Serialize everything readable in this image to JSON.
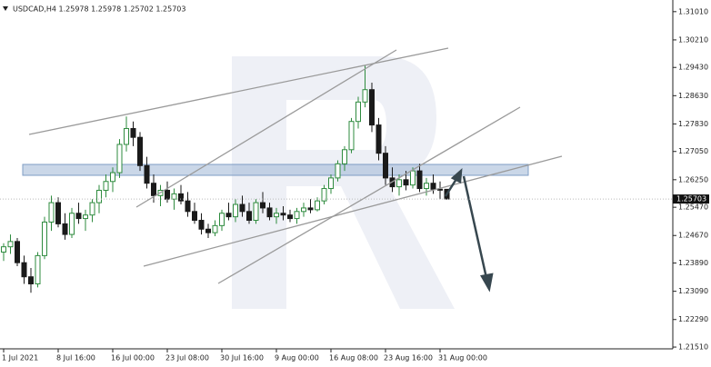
{
  "chart_data": {
    "type": "candlestick",
    "title": "USDCAD,H4  1.25978 1.25978 1.25702 1.25703",
    "categories": [
      "1 Jul 2021",
      null,
      null,
      null,
      null,
      null,
      null,
      null,
      "8 Jul 16:00",
      null,
      null,
      null,
      null,
      null,
      null,
      null,
      "16 Jul 00:00",
      null,
      null,
      null,
      null,
      null,
      null,
      null,
      "23 Jul 08:00",
      null,
      null,
      null,
      null,
      null,
      null,
      null,
      "30 Jul 16:00",
      null,
      null,
      null,
      null,
      null,
      null,
      null,
      "9 Aug 00:00",
      null,
      null,
      null,
      null,
      null,
      null,
      null,
      "16 Aug 08:00",
      null,
      null,
      null,
      null,
      null,
      null,
      null,
      "23 Aug 16:00",
      null,
      null,
      null,
      null,
      null,
      null,
      null,
      "31 Aug 00:00",
      null
    ],
    "open": [
      1.242,
      1.2435,
      1.245,
      1.239,
      1.235,
      1.233,
      1.241,
      1.2505,
      1.256,
      1.25,
      1.247,
      1.253,
      1.2515,
      1.2525,
      1.256,
      1.2595,
      1.262,
      1.2645,
      1.2725,
      1.277,
      1.2745,
      1.2665,
      1.2615,
      1.258,
      1.2595,
      1.257,
      1.2585,
      1.2565,
      1.2535,
      1.251,
      1.2485,
      1.2475,
      1.2495,
      1.253,
      1.252,
      1.2555,
      1.2535,
      1.251,
      1.256,
      1.2545,
      1.252,
      1.253,
      1.2525,
      1.2515,
      1.2535,
      1.2545,
      1.254,
      1.2565,
      1.26,
      1.263,
      1.267,
      1.271,
      1.279,
      1.2845,
      1.288,
      1.278,
      1.27,
      1.263,
      1.2605,
      1.2625,
      1.261,
      1.265,
      1.26,
      1.2615,
      1.2598,
      1.25978
    ],
    "high": [
      1.2445,
      1.247,
      1.246,
      1.241,
      1.2375,
      1.242,
      1.252,
      1.258,
      1.2575,
      1.253,
      1.2545,
      1.256,
      1.254,
      1.257,
      1.261,
      1.264,
      1.266,
      1.274,
      1.2804,
      1.279,
      1.276,
      1.269,
      1.264,
      1.261,
      1.262,
      1.26,
      1.261,
      1.259,
      1.256,
      1.253,
      1.25,
      1.251,
      1.254,
      1.256,
      1.257,
      1.258,
      1.256,
      1.257,
      1.259,
      1.256,
      1.2545,
      1.255,
      1.254,
      1.2545,
      1.256,
      1.257,
      1.2575,
      1.261,
      1.264,
      1.268,
      1.272,
      1.28,
      1.286,
      1.2949,
      1.29,
      1.28,
      1.272,
      1.266,
      1.264,
      1.265,
      1.266,
      1.267,
      1.263,
      1.264,
      1.262,
      1.25978
    ],
    "low": [
      1.2395,
      1.2415,
      1.238,
      1.233,
      1.2305,
      1.232,
      1.24,
      1.248,
      1.249,
      1.2455,
      1.246,
      1.25,
      1.248,
      1.2505,
      1.253,
      1.2575,
      1.259,
      1.263,
      1.2705,
      1.272,
      1.265,
      1.26,
      1.256,
      1.255,
      1.256,
      1.254,
      1.2555,
      1.252,
      1.25,
      1.247,
      1.246,
      1.2465,
      1.248,
      1.251,
      1.2505,
      1.252,
      1.25,
      1.25,
      1.253,
      1.251,
      1.25,
      1.251,
      1.2505,
      1.25,
      1.252,
      1.253,
      1.2535,
      1.2555,
      1.2585,
      1.262,
      1.265,
      1.27,
      1.277,
      1.283,
      1.276,
      1.268,
      1.261,
      1.259,
      1.258,
      1.2595,
      1.26,
      1.259,
      1.258,
      1.2585,
      1.257,
      1.25702
    ],
    "close": [
      1.2435,
      1.245,
      1.239,
      1.235,
      1.233,
      1.241,
      1.2505,
      1.256,
      1.25,
      1.247,
      1.253,
      1.2515,
      1.2525,
      1.256,
      1.2595,
      1.262,
      1.2645,
      1.2725,
      1.277,
      1.2745,
      1.2665,
      1.2615,
      1.258,
      1.2595,
      1.257,
      1.2585,
      1.2565,
      1.2535,
      1.251,
      1.2485,
      1.2475,
      1.2495,
      1.253,
      1.252,
      1.2555,
      1.2535,
      1.251,
      1.256,
      1.2545,
      1.252,
      1.253,
      1.2525,
      1.2515,
      1.2535,
      1.2545,
      1.254,
      1.2565,
      1.26,
      1.263,
      1.267,
      1.271,
      1.279,
      1.2845,
      1.288,
      1.278,
      1.27,
      1.263,
      1.2605,
      1.2625,
      1.261,
      1.265,
      1.26,
      1.2615,
      1.2598,
      1.25978,
      1.25703
    ],
    "up_color": "#2e8b3e",
    "down_color": "#1a1a1a",
    "ylim": [
      1.2146,
      1.3134
    ],
    "yticks": [
      {
        "value": 1.3101,
        "label": "1.31010"
      },
      {
        "value": 1.3021,
        "label": "1.30210"
      },
      {
        "value": 1.2943,
        "label": "1.29430"
      },
      {
        "value": 1.2863,
        "label": "1.28630"
      },
      {
        "value": 1.2783,
        "label": "1.27830"
      },
      {
        "value": 1.2705,
        "label": "1.27050"
      },
      {
        "value": 1.2625,
        "label": "1.26250"
      },
      {
        "value": 1.2547,
        "label": "1.25470"
      },
      {
        "value": 1.2467,
        "label": "1.24670"
      },
      {
        "value": 1.2389,
        "label": "1.23890"
      },
      {
        "value": 1.2309,
        "label": "1.23090"
      },
      {
        "value": 1.2229,
        "label": "1.22290"
      },
      {
        "value": 1.2151,
        "label": "1.21510"
      }
    ],
    "last_price": {
      "value": 1.25703,
      "label": "1.25703"
    },
    "grid": false
  }
}
